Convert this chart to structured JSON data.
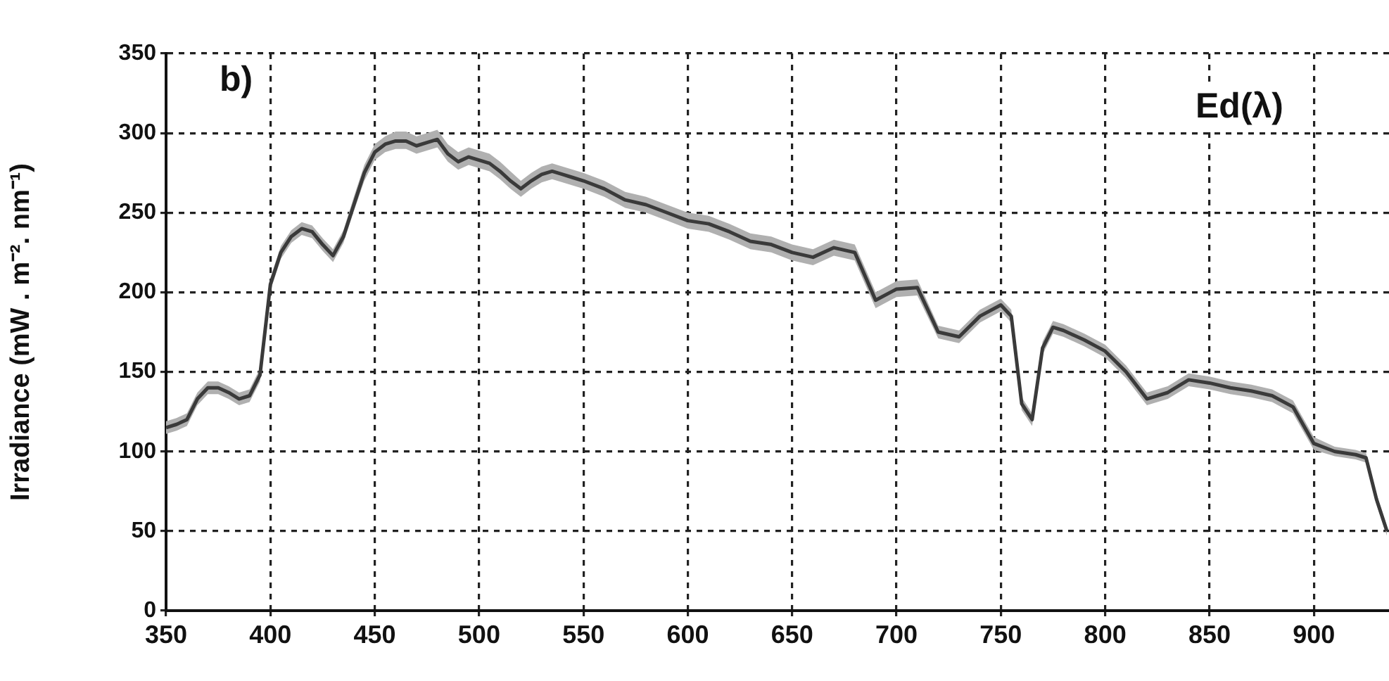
{
  "chart_data": {
    "type": "line",
    "ylabel": "Irradiance (mW . m⁻². nm⁻¹)",
    "annotations": [
      "b)",
      "Ed(λ)"
    ],
    "x": [
      350,
      355,
      360,
      365,
      370,
      375,
      380,
      385,
      390,
      395,
      400,
      405,
      410,
      415,
      420,
      425,
      430,
      435,
      440,
      445,
      450,
      455,
      460,
      465,
      470,
      475,
      480,
      485,
      490,
      495,
      500,
      505,
      510,
      515,
      520,
      525,
      530,
      535,
      540,
      545,
      550,
      560,
      570,
      580,
      590,
      600,
      610,
      620,
      630,
      640,
      650,
      660,
      670,
      680,
      690,
      700,
      710,
      720,
      730,
      740,
      750,
      755,
      760,
      765,
      770,
      775,
      780,
      790,
      800,
      810,
      820,
      830,
      840,
      850,
      860,
      870,
      880,
      890,
      900,
      910,
      920,
      925,
      930,
      935
    ],
    "series": [
      {
        "color": "#3a3a3a",
        "values": [
          115,
          117,
          120,
          133,
          140,
          140,
          137,
          133,
          135,
          148,
          205,
          225,
          235,
          240,
          238,
          230,
          223,
          235,
          255,
          275,
          288,
          293,
          295,
          295,
          292,
          294,
          296,
          287,
          282,
          285,
          283,
          281,
          276,
          270,
          265,
          270,
          274,
          276,
          274,
          272,
          270,
          265,
          258,
          255,
          250,
          245,
          243,
          238,
          232,
          230,
          225,
          222,
          228,
          225,
          195,
          202,
          203,
          175,
          172,
          185,
          192,
          185,
          130,
          120,
          165,
          178,
          176,
          170,
          163,
          150,
          133,
          137,
          145,
          143,
          140,
          138,
          135,
          128,
          105,
          100,
          98,
          96,
          70,
          50
        ],
        "lower": [
          111,
          113,
          116,
          129,
          136,
          136,
          133,
          129,
          131,
          144,
          201,
          221,
          231,
          236,
          234,
          226,
          219,
          231,
          251,
          270,
          283,
          288,
          290,
          290,
          287,
          289,
          291,
          282,
          277,
          280,
          278,
          276,
          271,
          265,
          260,
          265,
          269,
          271,
          269,
          267,
          265,
          260,
          253,
          250,
          245,
          240,
          238,
          233,
          227,
          225,
          220,
          217,
          223,
          220,
          190,
          197,
          198,
          171,
          168,
          181,
          188,
          181,
          126,
          116,
          161,
          174,
          172,
          166,
          159,
          146,
          129,
          133,
          141,
          139,
          136,
          134,
          131,
          124,
          101,
          97,
          95,
          93,
          67,
          47
        ],
        "upper": [
          119,
          121,
          124,
          137,
          144,
          144,
          141,
          137,
          139,
          152,
          209,
          229,
          239,
          244,
          242,
          234,
          227,
          239,
          260,
          280,
          293,
          298,
          301,
          301,
          298,
          300,
          302,
          293,
          288,
          291,
          289,
          287,
          282,
          276,
          270,
          275,
          279,
          281,
          279,
          277,
          275,
          270,
          263,
          260,
          255,
          250,
          248,
          243,
          237,
          235,
          230,
          227,
          233,
          230,
          200,
          207,
          208,
          179,
          176,
          189,
          196,
          189,
          134,
          124,
          169,
          182,
          180,
          174,
          167,
          154,
          137,
          141,
          149,
          147,
          144,
          142,
          139,
          132,
          109,
          103,
          101,
          99,
          73,
          53
        ]
      }
    ],
    "xlim": [
      350,
      936
    ],
    "xticks": [
      350,
      400,
      450,
      500,
      550,
      600,
      650,
      700,
      750,
      800,
      850,
      900
    ],
    "ylim": [
      0,
      350
    ],
    "yticks": [
      0,
      50,
      100,
      150,
      200,
      250,
      300,
      350
    ],
    "grid": true,
    "legend": false,
    "marker": "none",
    "line_style": "solid"
  }
}
